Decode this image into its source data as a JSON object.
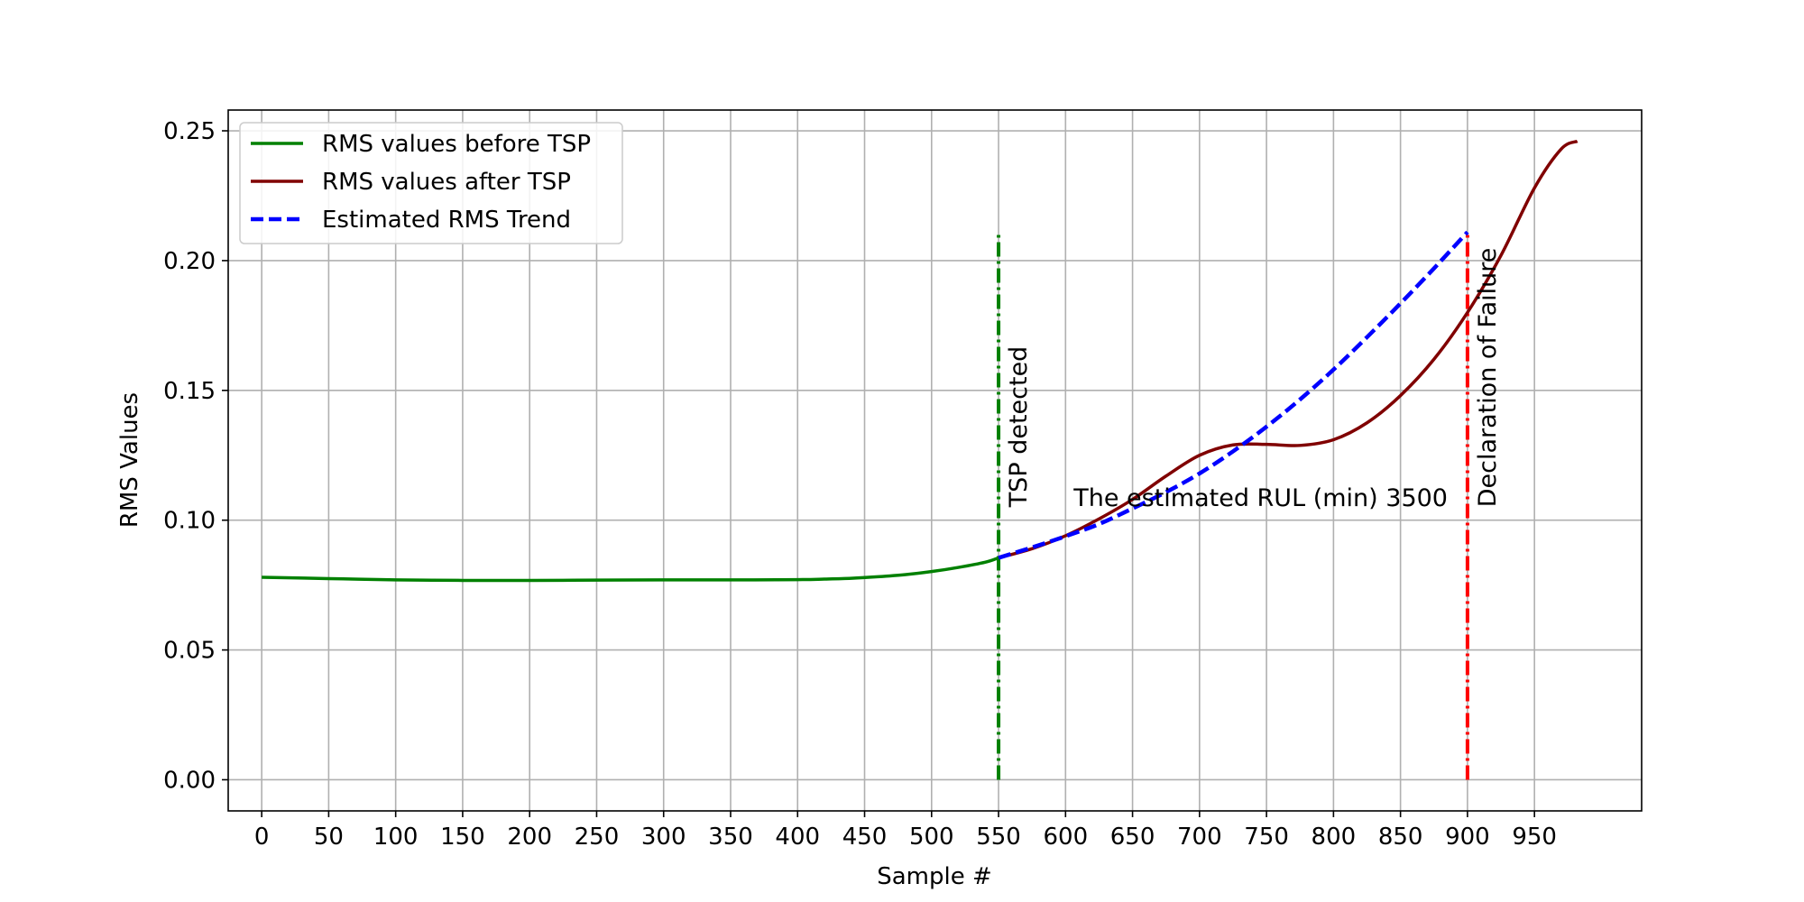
{
  "chart_data": {
    "type": "line",
    "title": "",
    "xlabel": "Sample #",
    "ylabel": "RMS Values",
    "xlim": [
      -25,
      1030
    ],
    "ylim": [
      -0.012,
      0.258
    ],
    "xticks": [
      0,
      50,
      100,
      150,
      200,
      250,
      300,
      350,
      400,
      450,
      500,
      550,
      600,
      650,
      700,
      750,
      800,
      850,
      900,
      950
    ],
    "yticks": [
      0.0,
      0.05,
      0.1,
      0.15,
      0.2,
      0.25
    ],
    "ytick_labels": [
      "0.00",
      "0.05",
      "0.10",
      "0.15",
      "0.20",
      "0.25"
    ],
    "grid": true,
    "legend_position": "upper-left",
    "series": [
      {
        "name": "RMS values before TSP",
        "color": "#008000",
        "style": "solid",
        "x": [
          0,
          50,
          100,
          150,
          200,
          250,
          300,
          350,
          400,
          420,
          440,
          460,
          480,
          500,
          520,
          540,
          550
        ],
        "y": [
          0.078,
          0.0775,
          0.077,
          0.0768,
          0.0768,
          0.0769,
          0.077,
          0.077,
          0.0771,
          0.0773,
          0.0776,
          0.0782,
          0.079,
          0.0802,
          0.0818,
          0.0838,
          0.0855
        ]
      },
      {
        "name": "RMS values after TSP",
        "color": "#800000",
        "style": "solid",
        "x": [
          550,
          575,
          600,
          625,
          650,
          675,
          700,
          725,
          750,
          775,
          800,
          825,
          850,
          875,
          900,
          925,
          950,
          970,
          982
        ],
        "y": [
          0.0855,
          0.089,
          0.094,
          0.1005,
          0.108,
          0.117,
          0.125,
          0.129,
          0.1292,
          0.1288,
          0.131,
          0.1375,
          0.148,
          0.162,
          0.18,
          0.202,
          0.228,
          0.243,
          0.246
        ]
      },
      {
        "name": "Estimated RMS Trend",
        "color": "#0000ff",
        "style": "dashed",
        "x": [
          550,
          575,
          600,
          625,
          650,
          675,
          700,
          725,
          750,
          775,
          800,
          825,
          850,
          875,
          900
        ],
        "y": [
          0.0855,
          0.0895,
          0.0938,
          0.0985,
          0.1045,
          0.1108,
          0.118,
          0.1265,
          0.136,
          0.1465,
          0.158,
          0.1705,
          0.1835,
          0.197,
          0.211
        ]
      }
    ],
    "vlines": [
      {
        "name": "tsp-detected-line",
        "x": 550,
        "ymin": 0.0,
        "ymax": 0.211,
        "color": "#008000",
        "style": "dashdot"
      },
      {
        "name": "declaration-of-failure-line",
        "x": 900,
        "ymin": 0.0,
        "ymax": 0.211,
        "color": "#ff0000",
        "style": "dashdot"
      }
    ],
    "annotations": {
      "tsp": "TSP detected",
      "failure": "Declaration of Failure",
      "rul": "The estimated RUL (min) 3500"
    }
  }
}
